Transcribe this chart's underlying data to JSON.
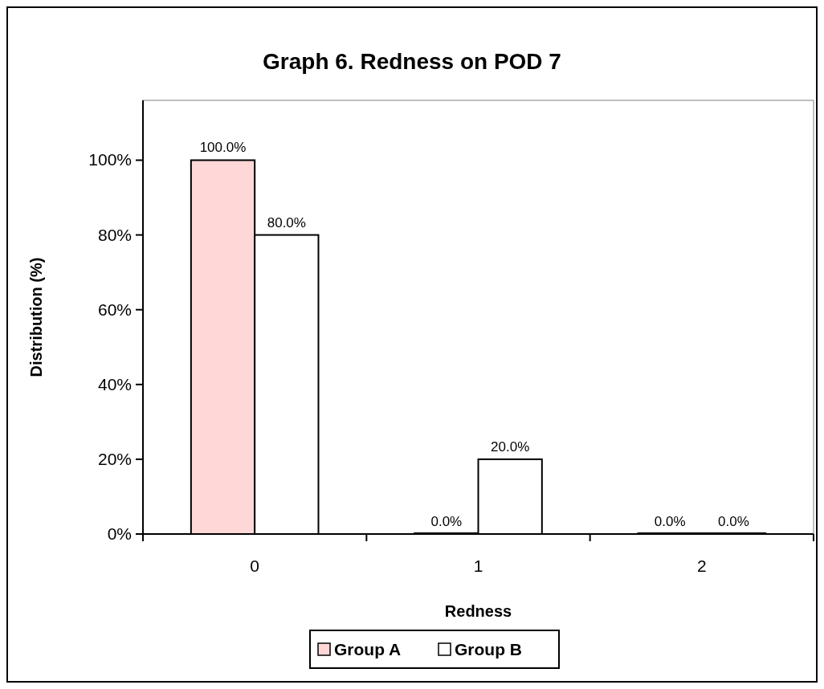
{
  "chart_data": {
    "type": "bar",
    "title": "Graph 6. Redness on POD 7",
    "xlabel": "Redness",
    "ylabel": "Distribution (%)",
    "categories": [
      "0",
      "1",
      "2"
    ],
    "series": [
      {
        "name": "Group A",
        "color": "#ffd7d7",
        "values": [
          100,
          0,
          0
        ],
        "value_labels": [
          "100.0%",
          "0.0%",
          "0.0%"
        ]
      },
      {
        "name": "Group B",
        "color": "#ffffff",
        "values": [
          80,
          20,
          0
        ],
        "value_labels": [
          "80.0%",
          "20.0%",
          "0.0%"
        ]
      }
    ],
    "ylim": [
      0,
      116
    ],
    "yticks": [
      {
        "value": 0,
        "label": "0%"
      },
      {
        "value": 20,
        "label": "20%"
      },
      {
        "value": 40,
        "label": "40%"
      },
      {
        "value": 60,
        "label": "60%"
      },
      {
        "value": 80,
        "label": "80%"
      },
      {
        "value": 100,
        "label": "100%"
      }
    ],
    "grid": false,
    "legend": "bottom"
  }
}
